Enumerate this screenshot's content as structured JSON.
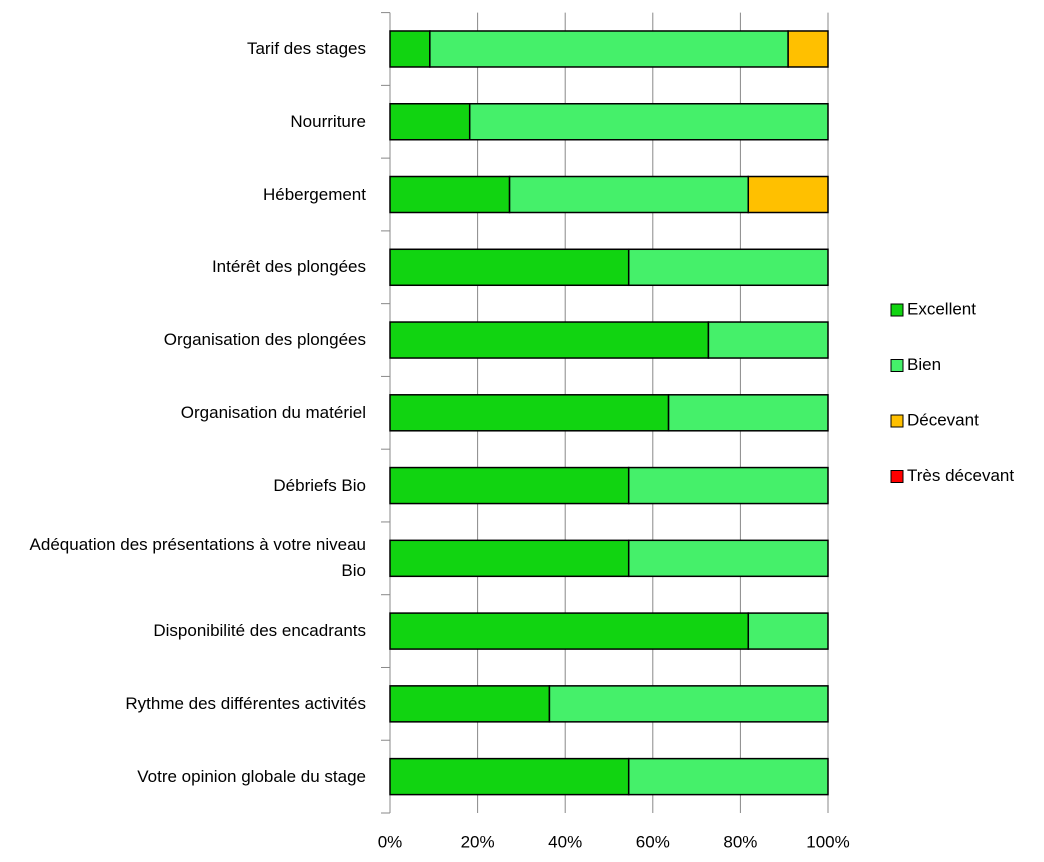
{
  "chart_data": {
    "type": "stacked_barh",
    "categories": [
      "Tarif des stages",
      "Nourriture",
      "Hébergement",
      "Intérêt des plongées",
      "Organisation des plongées",
      "Organisation du matériel",
      "Débriefs Bio",
      "Adéquation des présentations à votre niveau Bio",
      "Disponibilité des encadrants",
      "Rythme des différentes activités",
      "Votre opinion globale du stage"
    ],
    "series": [
      {
        "name": "Excellent",
        "color": "#11d411",
        "values": [
          9.1,
          18.2,
          27.3,
          54.5,
          72.7,
          63.6,
          54.5,
          54.5,
          81.8,
          36.4,
          54.5
        ]
      },
      {
        "name": "Bien",
        "color": "#45f06a",
        "values": [
          81.8,
          81.8,
          54.5,
          45.5,
          27.3,
          36.4,
          45.5,
          45.5,
          18.2,
          63.6,
          45.5
        ]
      },
      {
        "name": "Décevant",
        "color": "#ffc000",
        "values": [
          9.1,
          0,
          18.2,
          0,
          0,
          0,
          0,
          0,
          0,
          0,
          0
        ]
      },
      {
        "name": "Très décevant",
        "color": "#ff0000",
        "values": [
          0,
          0,
          0,
          0,
          0,
          0,
          0,
          0,
          0,
          0,
          0
        ]
      }
    ],
    "xlim": [
      0,
      100
    ],
    "xticks": [
      {
        "value": 0,
        "label": "0%"
      },
      {
        "value": 20,
        "label": "20%"
      },
      {
        "value": 40,
        "label": "40%"
      },
      {
        "value": 60,
        "label": "60%"
      },
      {
        "value": 80,
        "label": "80%"
      },
      {
        "value": 100,
        "label": "100%"
      }
    ],
    "grid": true,
    "legend": "right"
  }
}
